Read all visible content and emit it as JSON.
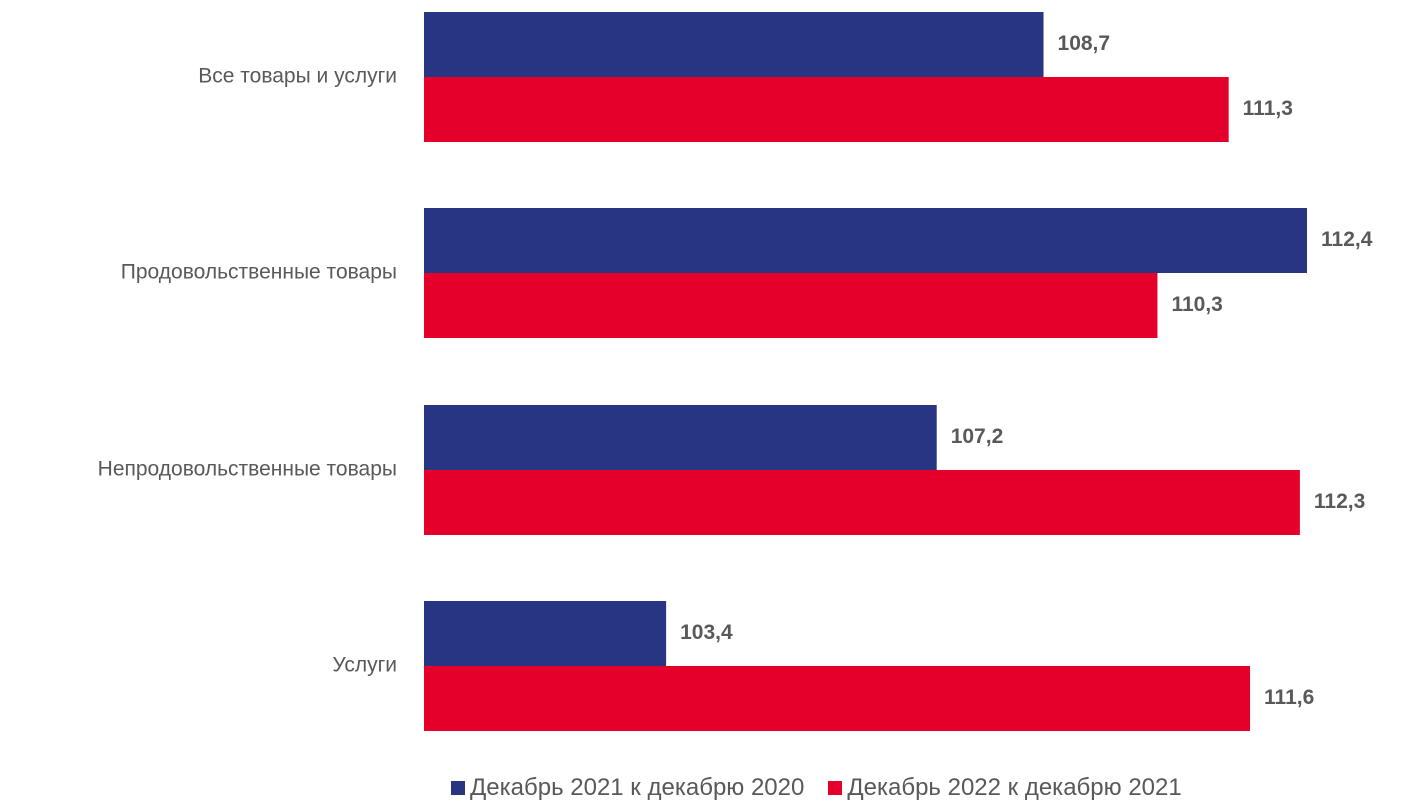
{
  "chart_data": {
    "type": "bar",
    "orientation": "horizontal",
    "categories": [
      "Все товары и услуги",
      "Продовольственные товары",
      "Непродовольственные товары",
      "Услуги"
    ],
    "series": [
      {
        "name": "Декабрь 2021 к декабрю 2020",
        "color": "#283583",
        "values": [
          108.7,
          112.4,
          107.2,
          103.4
        ],
        "labels": [
          "108,7",
          "112,4",
          "107,2",
          "103,4"
        ]
      },
      {
        "name": "Декабрь 2022 к декабрю 2021",
        "color": "#E4002B",
        "values": [
          111.3,
          110.3,
          112.3,
          111.6
        ],
        "labels": [
          "111,3",
          "110,3",
          "112,3",
          "111,6"
        ]
      }
    ],
    "xlim": [
      100,
      112.6
    ],
    "grid": false,
    "legend_position": "bottom",
    "title": "",
    "xlabel": "",
    "ylabel": ""
  }
}
